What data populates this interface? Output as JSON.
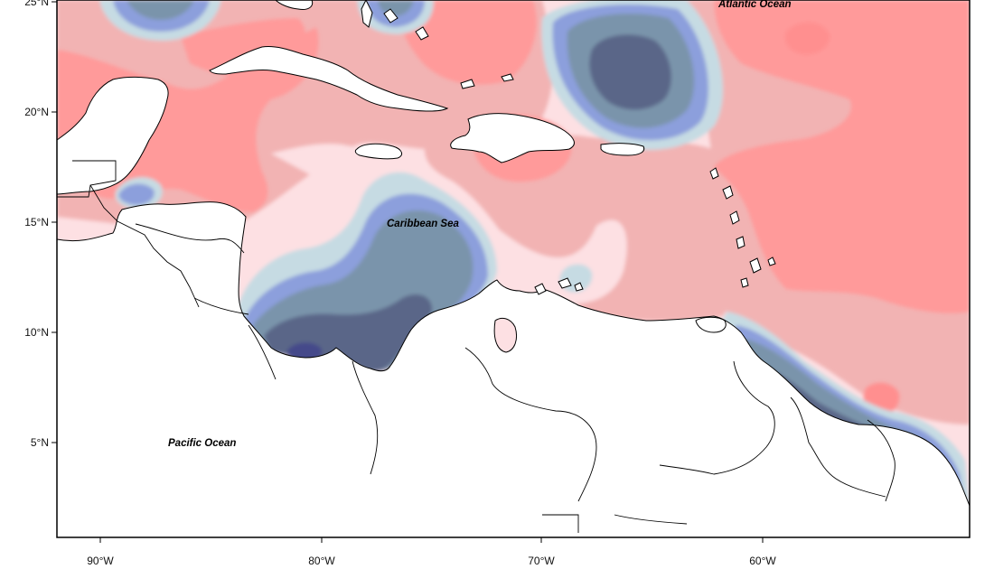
{
  "map": {
    "lat_ticks": [
      "25°N",
      "20°N",
      "15°N",
      "10°N",
      "5°N"
    ],
    "lon_ticks": [
      "90°W",
      "80°W",
      "70°W",
      "60°W"
    ],
    "labels": {
      "atlantic": "Atlantic Ocean",
      "caribbean": "Caribbean Sea",
      "pacific": "Pacific Ocean"
    },
    "extent": {
      "lon_min": -92,
      "lon_max": -51,
      "lat_min": 1,
      "lat_max": 25.5
    },
    "colors": {
      "strong_positive": "#ff9a9a",
      "moderate_positive": "#f2b3b3",
      "weak_positive": "#fde0e3",
      "weak_negative": "#c6dbe3",
      "moderate_negative": "#8c9fdc",
      "strong_negative": "#7a94ab",
      "very_strong_negative": "#5a6688",
      "extreme_negative": "#454a8a",
      "land": "#ffffff"
    }
  }
}
